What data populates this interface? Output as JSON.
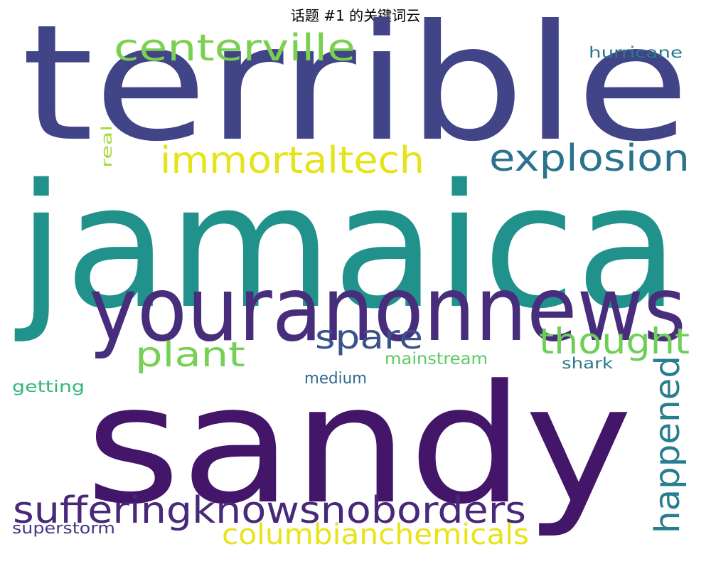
{
  "chart_data": {
    "type": "wordcloud",
    "title": "话题 #1 的关键词云",
    "words": [
      {
        "text": "terrible",
        "color": "#414487"
      },
      {
        "text": "jamaica",
        "color": "#21918c"
      },
      {
        "text": "youranonnews",
        "color": "#472d7b"
      },
      {
        "text": "sandy",
        "color": "#44166a"
      },
      {
        "text": "centerville",
        "color": "#7ad151"
      },
      {
        "text": "immortaltech",
        "color": "#e4e419"
      },
      {
        "text": "explosion",
        "color": "#2c728e"
      },
      {
        "text": "hurricane",
        "color": "#2a788e"
      },
      {
        "text": "real",
        "color": "#a5db36"
      },
      {
        "text": "spare",
        "color": "#3b528b"
      },
      {
        "text": "plant",
        "color": "#75d054"
      },
      {
        "text": "thought",
        "color": "#6ece58"
      },
      {
        "text": "happened",
        "color": "#287d8e"
      },
      {
        "text": "mainstream",
        "color": "#5ec962"
      },
      {
        "text": "shark",
        "color": "#2a788e"
      },
      {
        "text": "medium",
        "color": "#31688e"
      },
      {
        "text": "getting",
        "color": "#35b779"
      },
      {
        "text": "sufferingknowsnoborders",
        "color": "#482878"
      },
      {
        "text": "columbianchemicals",
        "color": "#e8e419"
      },
      {
        "text": "superstorm",
        "color": "#443983"
      }
    ]
  }
}
